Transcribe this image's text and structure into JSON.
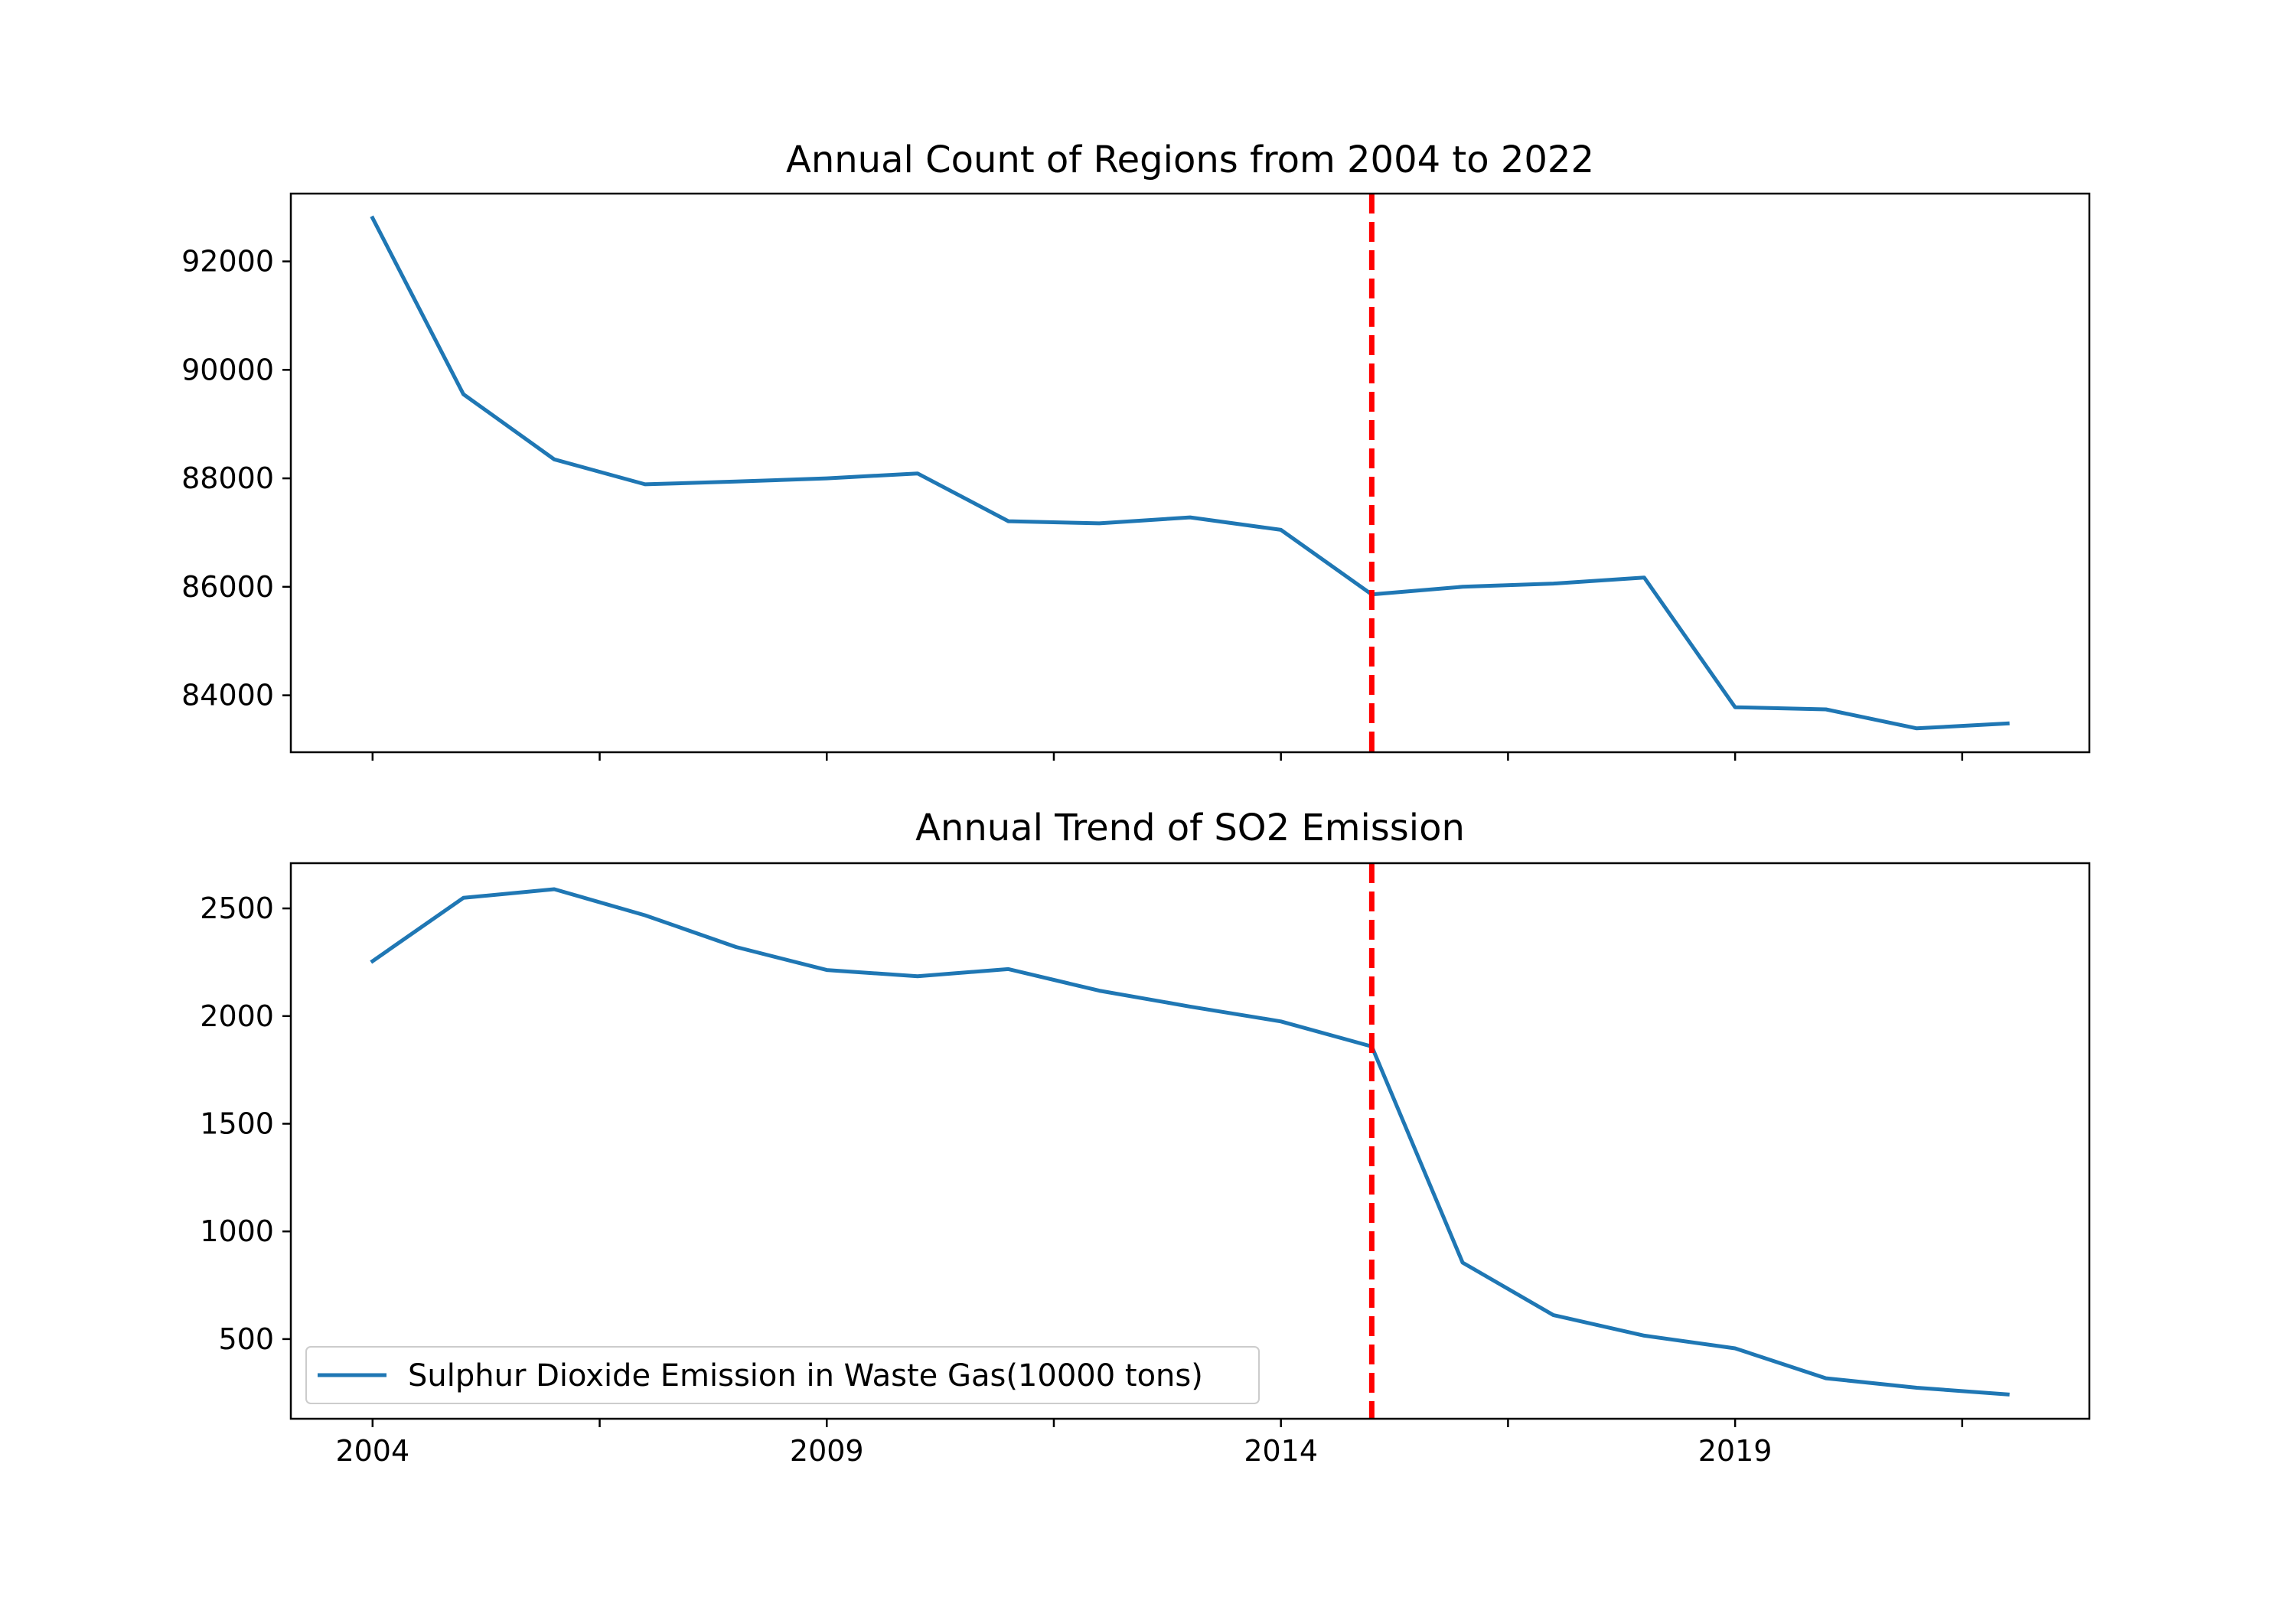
{
  "chart_data": [
    {
      "type": "line",
      "title": "Annual Count of Regions from 2004 to 2022",
      "xlabel": "",
      "ylabel": "",
      "x": [
        2004,
        2005,
        2006,
        2007,
        2008,
        2009,
        2010,
        2011,
        2012,
        2013,
        2014,
        2015,
        2016,
        2017,
        2018,
        2019,
        2020,
        2021,
        2022
      ],
      "series": [
        {
          "values": [
            92800,
            89550,
            88350,
            87890,
            87940,
            88000,
            88090,
            87210,
            87170,
            87280,
            87050,
            85860,
            86000,
            86060,
            86170,
            83780,
            83740,
            83390,
            83480
          ],
          "color": "#1f77b4"
        }
      ],
      "xlim": [
        2003.1,
        2022.9
      ],
      "ylim": [
        82950,
        93250
      ],
      "yticks": [
        84000,
        86000,
        88000,
        90000,
        92000
      ],
      "xticks": [
        2004,
        2006.5,
        2009,
        2011.5,
        2014,
        2016.5,
        2019,
        2021.5
      ],
      "xtick_labels_shown": false,
      "vline": {
        "x": 2015,
        "color": "#ff0000",
        "style": "dashed"
      },
      "grid": false
    },
    {
      "type": "line",
      "title": "Annual Trend of SO2 Emission",
      "xlabel": "",
      "ylabel": "",
      "x": [
        2004,
        2005,
        2006,
        2007,
        2008,
        2009,
        2010,
        2011,
        2012,
        2013,
        2014,
        2015,
        2016,
        2017,
        2018,
        2019,
        2020,
        2021,
        2022
      ],
      "series": [
        {
          "name": "Sulphur Dioxide Emission in Waste Gas(10000 tons)",
          "values": [
            2255,
            2549,
            2589,
            2468,
            2321,
            2214,
            2185,
            2218,
            2118,
            2044,
            1975,
            1859,
            855,
            611,
            516,
            457,
            318,
            274,
            243
          ],
          "color": "#1f77b4"
        }
      ],
      "xlim": [
        2003.1,
        2022.9
      ],
      "ylim": [
        130,
        2710
      ],
      "yticks": [
        500,
        1000,
        1500,
        2000,
        2500
      ],
      "xticks": [
        2004,
        2006.5,
        2009,
        2011.5,
        2014,
        2016.5,
        2019,
        2021.5
      ],
      "xtick_labels": [
        "2004",
        "",
        "2009",
        "",
        "2014",
        "",
        "2019",
        ""
      ],
      "xtick_labels_shown": true,
      "vline": {
        "x": 2015,
        "color": "#ff0000",
        "style": "dashed"
      },
      "legend": "lower-left",
      "grid": false
    }
  ]
}
